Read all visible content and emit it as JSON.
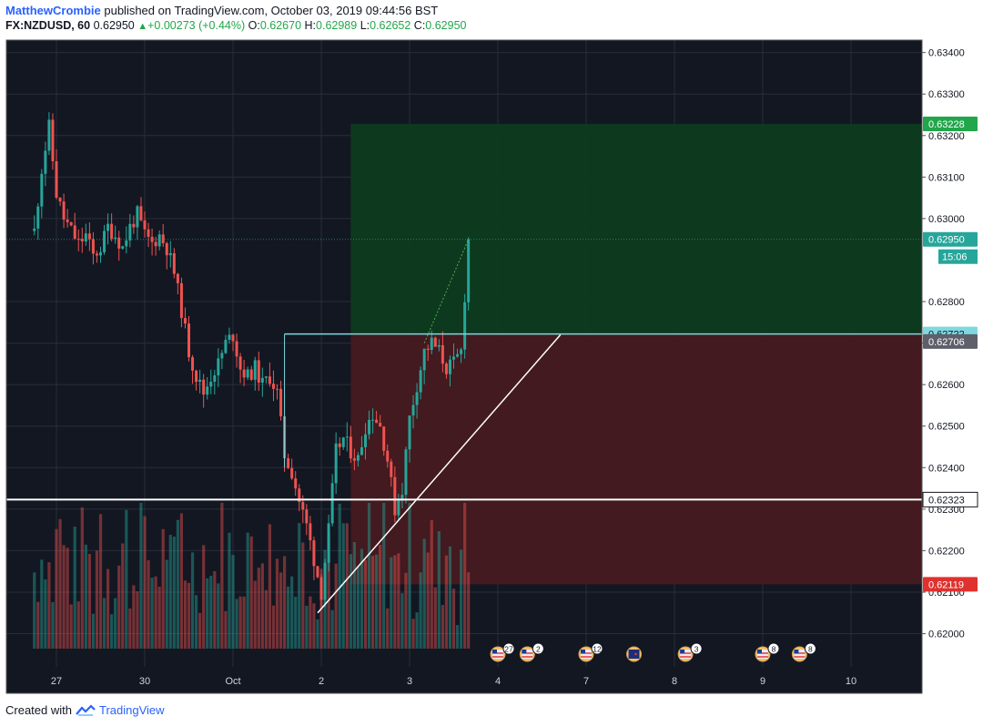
{
  "header": {
    "author": "MatthewCrombie",
    "published_text": "published on TradingView.com, October 03, 2019 09:44:56 BST",
    "symbol": "FX:NZDUSD, 60",
    "last": "0.62950",
    "change": "+0.00273 (+0.44%)",
    "o_label": "O:",
    "o_value": "0.62670",
    "h_label": "H:",
    "h_value": "0.62989",
    "l_label": "L:",
    "l_value": "0.62652",
    "c_label": "C:",
    "c_value": "0.62950"
  },
  "footer": {
    "created_with": "Created with",
    "brand": "TradingView"
  },
  "colors": {
    "up": "#26a69a",
    "down": "#ef5350",
    "background": "#131722",
    "grid": "#2a2e39",
    "profit_zone": "#0d3b1f",
    "loss_zone": "#451a20",
    "entry_line": "#7fd8e0",
    "green_tag": "#21a64b",
    "red_tag": "#e0312e"
  },
  "chart_data": {
    "type": "candlestick",
    "symbol": "FX:NZDUSD",
    "interval": "60",
    "y_axis": {
      "ticks": [
        "0.63400",
        "0.63300",
        "0.63200",
        "0.63100",
        "0.63000",
        "0.62800",
        "0.62700",
        "0.62600",
        "0.62500",
        "0.62400",
        "0.62300",
        "0.62200",
        "0.62100",
        "0.62000"
      ],
      "range": [
        0.6192,
        0.6343
      ]
    },
    "x_axis": {
      "ticks": [
        {
          "label": "27",
          "t": 6
        },
        {
          "label": "30",
          "t": 30
        },
        {
          "label": "Oct",
          "t": 54
        },
        {
          "label": "2",
          "t": 78
        },
        {
          "label": "3",
          "t": 102
        },
        {
          "label": "4",
          "t": 126
        },
        {
          "label": "7",
          "t": 150
        },
        {
          "label": "8",
          "t": 174
        },
        {
          "label": "9",
          "t": 198
        },
        {
          "label": "10",
          "t": 222
        }
      ]
    },
    "candles_start_t": 0,
    "last_candle_t": 118,
    "close_path": [
      [
        0,
        0.6297
      ],
      [
        2,
        0.6312
      ],
      [
        4,
        0.6322
      ],
      [
        6,
        0.6306
      ],
      [
        8,
        0.63
      ],
      [
        10,
        0.6297
      ],
      [
        12,
        0.6294
      ],
      [
        14,
        0.6296
      ],
      [
        16,
        0.6291
      ],
      [
        18,
        0.6293
      ],
      [
        20,
        0.6298
      ],
      [
        22,
        0.6296
      ],
      [
        24,
        0.6293
      ],
      [
        26,
        0.6298
      ],
      [
        28,
        0.6301
      ],
      [
        30,
        0.6296
      ],
      [
        32,
        0.6294
      ],
      [
        34,
        0.6296
      ],
      [
        36,
        0.6293
      ],
      [
        38,
        0.6287
      ],
      [
        40,
        0.6278
      ],
      [
        42,
        0.6268
      ],
      [
        44,
        0.6262
      ],
      [
        46,
        0.6258
      ],
      [
        48,
        0.6262
      ],
      [
        50,
        0.6265
      ],
      [
        52,
        0.627
      ],
      [
        54,
        0.6272
      ],
      [
        56,
        0.6264
      ],
      [
        58,
        0.6262
      ],
      [
        60,
        0.6264
      ],
      [
        62,
        0.626
      ],
      [
        64,
        0.6262
      ],
      [
        66,
        0.6258
      ],
      [
        68,
        0.6243
      ],
      [
        70,
        0.6239
      ],
      [
        72,
        0.6232
      ],
      [
        74,
        0.6226
      ],
      [
        76,
        0.6218
      ],
      [
        78,
        0.621
      ],
      [
        80,
        0.6225
      ],
      [
        82,
        0.6244
      ],
      [
        84,
        0.6247
      ],
      [
        86,
        0.6244
      ],
      [
        88,
        0.6242
      ],
      [
        90,
        0.625
      ],
      [
        92,
        0.6253
      ],
      [
        94,
        0.625
      ],
      [
        96,
        0.6242
      ],
      [
        98,
        0.623
      ],
      [
        100,
        0.6235
      ],
      [
        102,
        0.6252
      ],
      [
        104,
        0.626
      ],
      [
        106,
        0.6268
      ],
      [
        108,
        0.627
      ],
      [
        110,
        0.6268
      ],
      [
        112,
        0.6264
      ],
      [
        114,
        0.6265
      ],
      [
        116,
        0.6268
      ],
      [
        118,
        0.6295
      ]
    ],
    "volume_range": [
      0,
      1
    ],
    "volumes_sample": [
      0.3,
      0.4,
      0.5,
      0.7,
      0.3,
      0.2,
      0.6,
      0.9,
      0.4,
      0.5,
      0.3
    ],
    "overlays": {
      "profit_target": "0.63228",
      "last_price": "0.62950",
      "countdown": "15:06",
      "entry": "0.62722",
      "current_line": "0.62706",
      "support": "0.62323",
      "stop_loss": "0.62119",
      "position_box": {
        "t_start": 86,
        "t_end": 246,
        "top": 0.63228,
        "entry": 0.62722,
        "bottom": 0.62119
      }
    },
    "trendline": [
      {
        "t": 77,
        "y": 0.6205
      },
      {
        "t": 143,
        "y": 0.6272
      }
    ],
    "horizontal_lines": [
      {
        "name": "support",
        "y": 0.62323,
        "color": "#ffffff"
      },
      {
        "name": "entry",
        "y": 0.62722,
        "t_start": 68,
        "color": "#7fd8e0"
      }
    ],
    "events": [
      {
        "flag": "US",
        "count": "27",
        "t": 126
      },
      {
        "flag": "US",
        "count": "2",
        "t": 134
      },
      {
        "flag": "US",
        "count": "12",
        "t": 150
      },
      {
        "flag": "NZ",
        "count": "",
        "t": 163
      },
      {
        "flag": "US",
        "count": "3",
        "t": 177
      },
      {
        "flag": "US",
        "count": "8",
        "t": 198
      },
      {
        "flag": "US",
        "count": "8",
        "t": 208
      }
    ]
  }
}
